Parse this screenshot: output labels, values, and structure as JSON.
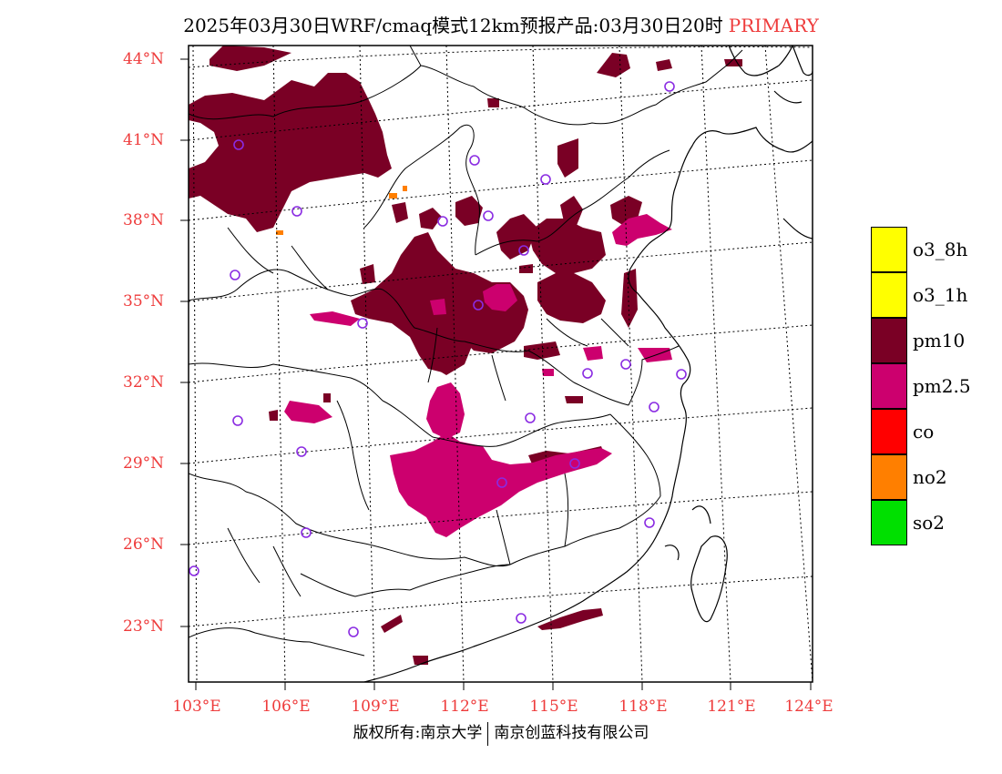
{
  "title": {
    "text": "2025年03月30日WRF/cmaq模式12km预报产品:03月30日20时",
    "tag": "PRIMARY",
    "tag_color": "#ee3b3b"
  },
  "axes": {
    "lat_labels": [
      "44°N",
      "41°N",
      "38°N",
      "35°N",
      "32°N",
      "29°N",
      "26°N",
      "23°N"
    ],
    "lon_labels": [
      "103°E",
      "106°E",
      "109°E",
      "112°E",
      "115°E",
      "118°E",
      "121°E",
      "124°E"
    ],
    "label_color": "#ee3b3b"
  },
  "legend": [
    {
      "label": "o3_8h",
      "color": "#ffff00"
    },
    {
      "label": "o3_1h",
      "color": "#ffff00"
    },
    {
      "label": "pm10",
      "color": "#7a0025"
    },
    {
      "label": "pm2.5",
      "color": "#cc006e"
    },
    {
      "label": "co",
      "color": "#ff0000"
    },
    {
      "label": "no2",
      "color": "#ff7f00"
    },
    {
      "label": "so2",
      "color": "#00e000"
    }
  ],
  "footer": {
    "left": "版权所有:南京大学",
    "right": "南京创蓝科技有限公司"
  },
  "colors": {
    "pm10": "#7a0025",
    "pm25": "#cc006e",
    "no2": "#ff7f00",
    "station": "#8a2be2"
  }
}
